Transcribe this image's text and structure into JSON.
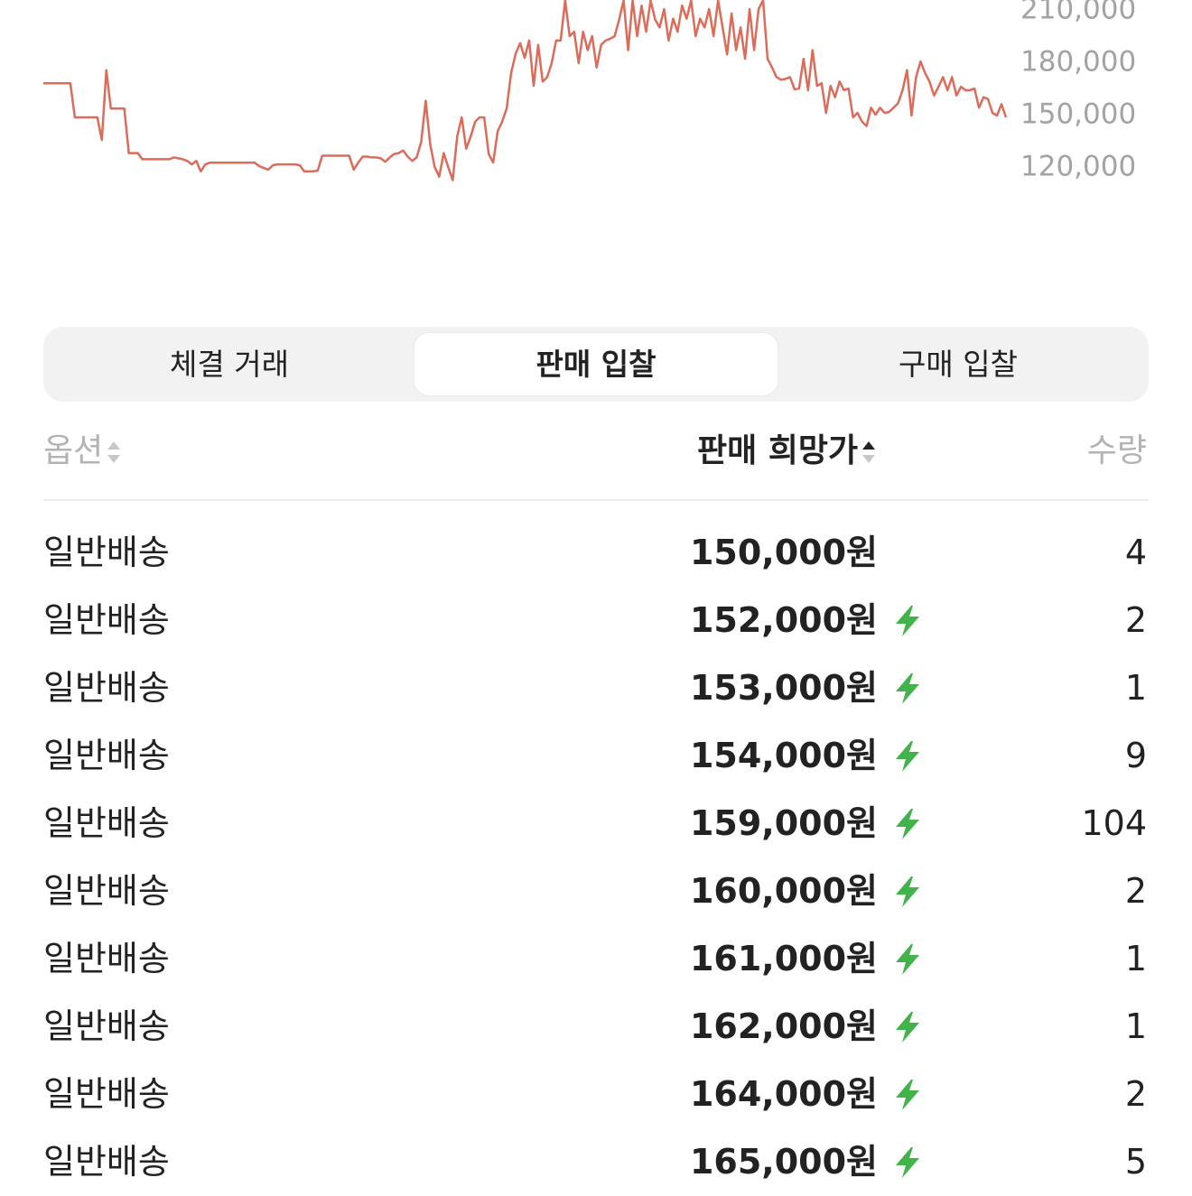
{
  "chart_data": {
    "type": "line",
    "color": "#dd6b5a",
    "values": [
      168500,
      168500,
      168500,
      168500,
      168500,
      168500,
      168500,
      149000,
      149000,
      149000,
      149000,
      149000,
      149000,
      136000,
      176000,
      154000,
      154000,
      154000,
      154000,
      128500,
      128500,
      128500,
      125000,
      125000,
      125000,
      125000,
      125000,
      125000,
      125000,
      126000,
      125500,
      125000,
      124000,
      122000,
      124000,
      118000,
      122000,
      123000,
      123000,
      123000,
      123000,
      123000,
      123000,
      123000,
      123000,
      123000,
      123000,
      123000,
      121000,
      120000,
      119000,
      121500,
      122000,
      122000,
      122000,
      122000,
      122000,
      121500,
      118000,
      118000,
      118000,
      118500,
      127000,
      127000,
      127000,
      127000,
      127000,
      127000,
      127000,
      119000,
      123000,
      126500,
      126500,
      126000,
      126000,
      125500,
      123500,
      126000,
      128000,
      128500,
      130000,
      126500,
      124000,
      126000,
      135000,
      158500,
      133500,
      120500,
      115000,
      128500,
      120500,
      113000,
      138000,
      149000,
      131000,
      138000,
      146500,
      149000,
      149000,
      128000,
      123000,
      141000,
      146500,
      154000,
      174500,
      185500,
      191500,
      183000,
      193000,
      167000,
      190500,
      169500,
      172000,
      180000,
      193000,
      193000,
      216000,
      195500,
      198000,
      180000,
      198000,
      187500,
      195500,
      177500,
      190500,
      193000,
      194000,
      195500,
      205000,
      216000,
      187500,
      216000,
      195500,
      213000,
      198000,
      216000,
      205000,
      200500,
      211000,
      193000,
      205500,
      198000,
      213000,
      205500,
      216000,
      195500,
      205500,
      200500,
      211000,
      195500,
      216000,
      200500,
      185000,
      208500,
      187500,
      200500,
      182500,
      211000,
      187500,
      211000,
      216000,
      182500,
      177500,
      172000,
      170500,
      171000,
      172000,
      165000,
      165500,
      182500,
      164500,
      187500,
      167000,
      168500,
      151500,
      167000,
      160500,
      169500,
      164500,
      165500,
      149000,
      151500,
      146500,
      144000,
      154500,
      150500,
      154500,
      151500,
      152000,
      154500,
      157000,
      164500,
      176000,
      150000,
      172000,
      181000,
      174500,
      169500,
      161500,
      166500,
      172000,
      164500,
      172000,
      161500,
      166500,
      164500,
      164500,
      165500,
      154500,
      160500,
      159500,
      151500,
      150000,
      156500,
      149000
    ],
    "ylim": [
      100000,
      216200
    ],
    "yticks": [
      {
        "value": 120000,
        "label": "120,000"
      },
      {
        "value": 150000,
        "label": "150,000"
      },
      {
        "value": 180000,
        "label": "180,000"
      },
      {
        "value": 210000,
        "label": "210,000"
      }
    ]
  },
  "tabs": [
    {
      "label": "체결 거래",
      "selected": false
    },
    {
      "label": "판매 입찰",
      "selected": true
    },
    {
      "label": "구매 입찰",
      "selected": false
    }
  ],
  "table": {
    "headers": [
      "옵션",
      "판매 희망가",
      "수량"
    ],
    "rows": [
      {
        "option": "일반배송",
        "price": "150,000원",
        "express": false,
        "quantity": 4
      },
      {
        "option": "일반배송",
        "price": "152,000원",
        "express": true,
        "quantity": 2
      },
      {
        "option": "일반배송",
        "price": "153,000원",
        "express": true,
        "quantity": 1
      },
      {
        "option": "일반배송",
        "price": "154,000원",
        "express": true,
        "quantity": 9
      },
      {
        "option": "일반배송",
        "price": "159,000원",
        "express": true,
        "quantity": 104
      },
      {
        "option": "일반배송",
        "price": "160,000원",
        "express": true,
        "quantity": 2
      },
      {
        "option": "일반배송",
        "price": "161,000원",
        "express": true,
        "quantity": 1
      },
      {
        "option": "일반배송",
        "price": "162,000원",
        "express": true,
        "quantity": 1
      },
      {
        "option": "일반배송",
        "price": "164,000원",
        "express": true,
        "quantity": 2
      },
      {
        "option": "일반배송",
        "price": "165,000원",
        "express": true,
        "quantity": 5
      }
    ]
  }
}
